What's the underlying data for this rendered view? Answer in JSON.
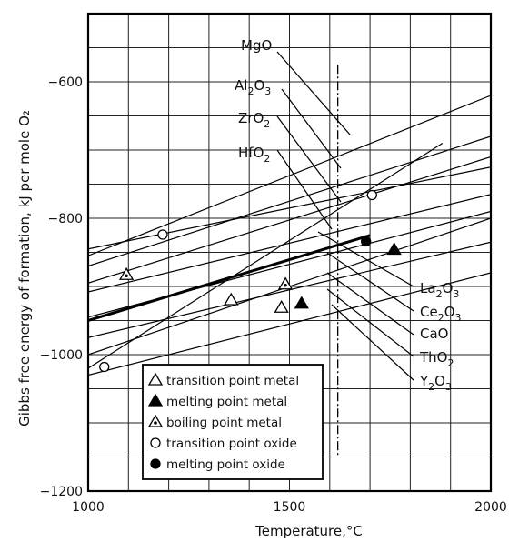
{
  "chart_data": {
    "type": "line",
    "xlabel": "Temperature,°C",
    "ylabel": "Gibbs free energy of formation, kJ per mole O₂",
    "xlim": [
      1000,
      2000
    ],
    "ylim": [
      -1200,
      -500
    ],
    "xticks": [
      1000,
      1500,
      2000
    ],
    "yticks": [
      -600,
      -800,
      -1000,
      -1200
    ],
    "grid": true,
    "series": [
      {
        "name": "MgO",
        "x": [
          1000,
          1880
        ],
        "y": [
          -1020,
          -690
        ]
      },
      {
        "name": "Al₂O₃",
        "x": [
          1000,
          2000
        ],
        "y": [
          -1000,
          -800
        ]
      },
      {
        "name": "ZrO₂",
        "x": [
          1000,
          2000
        ],
        "y": [
          -870,
          -680
        ]
      },
      {
        "name": "HfO₂",
        "x": [
          1000,
          2000
        ],
        "y": [
          -895,
          -710
        ]
      },
      {
        "name": "La₂O₃",
        "x": [
          1000,
          1700
        ],
        "y": [
          -950,
          -825
        ]
      },
      {
        "name": "Ce₂O₃",
        "x": [
          1000,
          2000
        ],
        "y": [
          -908,
          -765
        ]
      },
      {
        "name": "CaO",
        "x": [
          1000,
          2000
        ],
        "y": [
          -855,
          -620
        ]
      },
      {
        "name": "ThO₂",
        "x": [
          1000,
          2000
        ],
        "y": [
          -845,
          -725
        ]
      },
      {
        "name": "Y₂O₃",
        "x": [
          1000,
          2000
        ],
        "y": [
          -945,
          -790
        ]
      },
      {
        "name": "",
        "x": [
          1000,
          2000
        ],
        "y": [
          -1030,
          -880
        ]
      },
      {
        "name": "",
        "x": [
          1000,
          2000
        ],
        "y": [
          -975,
          -835
        ]
      }
    ],
    "oxide_labels": [
      {
        "key": "MgO",
        "base": "Mg",
        "parts": [
          [
            "O",
            ""
          ]
        ]
      },
      {
        "key": "Al2O3",
        "base": "Al",
        "parts": [
          [
            "2",
            "sub"
          ],
          [
            "O",
            ""
          ],
          [
            "3",
            "sub"
          ]
        ]
      },
      {
        "key": "ZrO2",
        "base": "Zr",
        "parts": [
          [
            "O",
            ""
          ],
          [
            "2",
            "sub"
          ]
        ]
      },
      {
        "key": "HfO2",
        "base": "Hf",
        "parts": [
          [
            "O",
            ""
          ],
          [
            "2",
            "sub"
          ]
        ]
      },
      {
        "key": "La2O3",
        "base": "La",
        "parts": [
          [
            "2",
            "sub"
          ],
          [
            "O",
            ""
          ],
          [
            "3",
            "sub"
          ]
        ]
      },
      {
        "key": "Ce2O3",
        "base": "Ce",
        "parts": [
          [
            "2",
            "sub"
          ],
          [
            "O",
            ""
          ],
          [
            "3",
            "sub"
          ]
        ]
      },
      {
        "key": "CaO",
        "base": "Ca",
        "parts": [
          [
            "O",
            ""
          ]
        ]
      },
      {
        "key": "ThO2",
        "base": "Th",
        "parts": [
          [
            "O",
            ""
          ],
          [
            "2",
            "sub"
          ]
        ]
      },
      {
        "key": "Y2O3",
        "base": "Y",
        "parts": [
          [
            "2",
            "sub"
          ],
          [
            "O",
            ""
          ],
          [
            "3",
            "sub"
          ]
        ]
      }
    ],
    "markers": [
      {
        "type": "boiling point metal",
        "x": 1095,
        "y": -883
      },
      {
        "type": "transition point oxide",
        "x": 1040,
        "y": -1018
      },
      {
        "type": "transition point oxide",
        "x": 1185,
        "y": -824
      },
      {
        "type": "transition point metal",
        "x": 1355,
        "y": -920
      },
      {
        "type": "transition point metal",
        "x": 1480,
        "y": -931
      },
      {
        "type": "boiling point metal",
        "x": 1490,
        "y": -897
      },
      {
        "type": "melting point metal",
        "x": 1530,
        "y": -925
      },
      {
        "type": "transition point oxide",
        "x": 1705,
        "y": -766
      },
      {
        "type": "melting point oxide",
        "x": 1690,
        "y": -834
      },
      {
        "type": "melting point metal",
        "x": 1760,
        "y": -846
      }
    ],
    "legend": [
      {
        "symbol": "triangle-open",
        "label": "transition point metal"
      },
      {
        "symbol": "triangle-filled",
        "label": "melting point metal"
      },
      {
        "symbol": "triangle-dotted",
        "label": "boiling point metal"
      },
      {
        "symbol": "circle-open",
        "label": "transition point oxide"
      },
      {
        "symbol": "circle-filled",
        "label": "melting point oxide"
      }
    ],
    "legend_position": "bottom-left"
  }
}
